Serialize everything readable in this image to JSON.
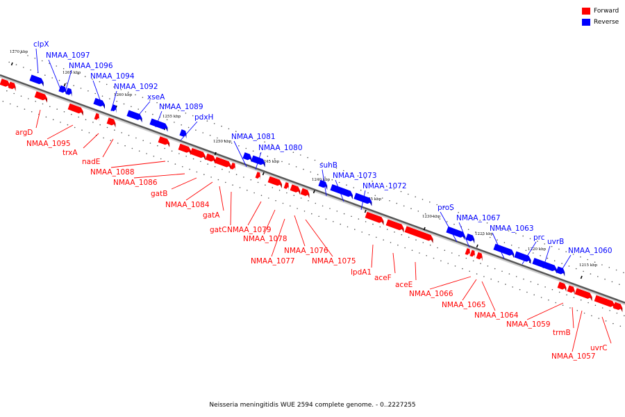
{
  "caption": "Neisseria meningitidis WUE 2594 complete genome. - 0..2227255",
  "legend": [
    {
      "label": "Forward",
      "color": "#ff0000"
    },
    {
      "label": "Reverse",
      "color": "#0000ff"
    }
  ],
  "colors": {
    "forward": "#ff0000",
    "forward_dark": "#a00000",
    "reverse": "#0000ff",
    "reverse_dark": "#00009c",
    "backbone": "#888888"
  },
  "ticks": [
    {
      "label": "1270 kbp"
    },
    {
      "label": "1265 kbp"
    },
    {
      "label": "1260 kbp"
    },
    {
      "label": "1255 kbp"
    },
    {
      "label": "1250 kbp"
    },
    {
      "label": "1245 kbp"
    },
    {
      "label": "1240 kbp"
    },
    {
      "label": "1235 kbp"
    },
    {
      "label": "1230 kbp"
    },
    {
      "label": "1225 kbp"
    },
    {
      "label": "1220 kbp"
    },
    {
      "label": "1215 kbp"
    }
  ],
  "genes": [
    {
      "name": "clpX",
      "strand": "reverse"
    },
    {
      "name": "NMAA_1097",
      "strand": "reverse"
    },
    {
      "name": "NMAA_1096",
      "strand": "reverse"
    },
    {
      "name": "NMAA_1094",
      "strand": "reverse"
    },
    {
      "name": "NMAA_1092",
      "strand": "reverse"
    },
    {
      "name": "xseA",
      "strand": "reverse"
    },
    {
      "name": "NMAA_1089",
      "strand": "reverse"
    },
    {
      "name": "pdxH",
      "strand": "reverse"
    },
    {
      "name": "NMAA_1081",
      "strand": "reverse"
    },
    {
      "name": "NMAA_1080",
      "strand": "reverse"
    },
    {
      "name": "suhB",
      "strand": "reverse"
    },
    {
      "name": "NMAA_1073",
      "strand": "reverse"
    },
    {
      "name": "NMAA_1072",
      "strand": "reverse"
    },
    {
      "name": "proS",
      "strand": "reverse"
    },
    {
      "name": "NMAA_1067",
      "strand": "reverse"
    },
    {
      "name": "NMAA_1063",
      "strand": "reverse"
    },
    {
      "name": "prc",
      "strand": "reverse"
    },
    {
      "name": "uvrB",
      "strand": "reverse"
    },
    {
      "name": "NMAA_1060",
      "strand": "reverse"
    },
    {
      "name": "argD",
      "strand": "forward"
    },
    {
      "name": "NMAA_1095",
      "strand": "forward"
    },
    {
      "name": "trxA",
      "strand": "forward"
    },
    {
      "name": "nadE",
      "strand": "forward"
    },
    {
      "name": "NMAA_1088",
      "strand": "forward"
    },
    {
      "name": "NMAA_1086",
      "strand": "forward"
    },
    {
      "name": "gatB",
      "strand": "forward"
    },
    {
      "name": "NMAA_1084",
      "strand": "forward"
    },
    {
      "name": "gatA",
      "strand": "forward"
    },
    {
      "name": "gatC",
      "strand": "forward"
    },
    {
      "name": "NMAA_1079",
      "strand": "forward"
    },
    {
      "name": "NMAA_1078",
      "strand": "forward"
    },
    {
      "name": "NMAA_1077",
      "strand": "forward"
    },
    {
      "name": "NMAA_1076",
      "strand": "forward"
    },
    {
      "name": "NMAA_1075",
      "strand": "forward"
    },
    {
      "name": "lpdA1",
      "strand": "forward"
    },
    {
      "name": "aceF",
      "strand": "forward"
    },
    {
      "name": "aceE",
      "strand": "forward"
    },
    {
      "name": "NMAA_1066",
      "strand": "forward"
    },
    {
      "name": "NMAA_1065",
      "strand": "forward"
    },
    {
      "name": "NMAA_1064",
      "strand": "forward"
    },
    {
      "name": "NMAA_1059",
      "strand": "forward"
    },
    {
      "name": "trmB",
      "strand": "forward"
    },
    {
      "name": "NMAA_1057",
      "strand": "forward"
    },
    {
      "name": "uvrC",
      "strand": "forward"
    }
  ],
  "extra_forward_blocks": 8
}
